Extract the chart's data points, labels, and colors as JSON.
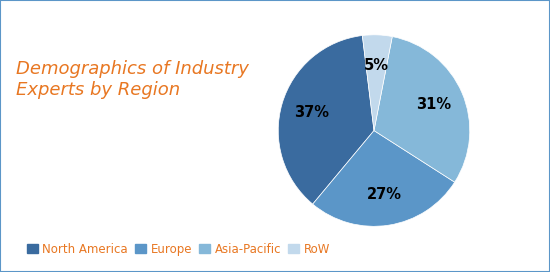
{
  "title": "Demographics of Industry\nExperts by Region",
  "title_color": "#E87722",
  "title_fontsize": 13,
  "labels": [
    "North America",
    "Europe",
    "Asia-Pacific",
    "RoW"
  ],
  "values": [
    37,
    27,
    31,
    5
  ],
  "colors": [
    "#3A6B9F",
    "#5B96C8",
    "#85B8D9",
    "#C2D9EC"
  ],
  "autopct_fontsize": 10.5,
  "legend_fontsize": 8.5,
  "legend_label_color": "#E87722",
  "background_color": "#FFFFFF",
  "border_color": "#5B96C8",
  "startangle": 97,
  "pctdistance": 0.68
}
